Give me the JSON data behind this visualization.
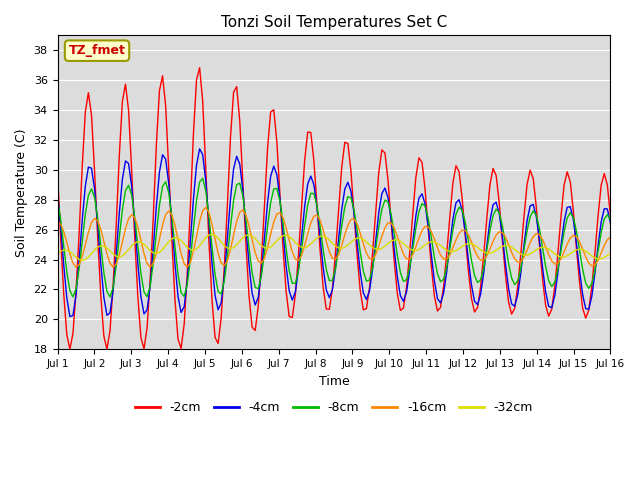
{
  "title": "Tonzi Soil Temperatures Set C",
  "xlabel": "Time",
  "ylabel": "Soil Temperature (C)",
  "ylim": [
    18,
    39
  ],
  "background_color": "#dcdcdc",
  "annotation_text": "TZ_fmet",
  "series_colors": [
    "#ff0000",
    "#0000ee",
    "#00bb00",
    "#ff8800",
    "#dddd00"
  ],
  "series_labels": [
    "-2cm",
    "-4cm",
    "-8cm",
    "-16cm",
    "-32cm"
  ],
  "xtick_labels": [
    "Jul 1",
    "Jul 2",
    "Jul 3",
    "Jul 4",
    "Jul 5",
    "Jul 6",
    "Jul 7",
    "Jul 8",
    "Jul 9",
    "Jul 10",
    "Jul 11",
    "Jul 12",
    "Jul 13",
    "Jul 14",
    "Jul 15",
    "Jul 16"
  ],
  "yticks": [
    18,
    20,
    22,
    24,
    26,
    28,
    30,
    32,
    34,
    36,
    38
  ],
  "n_points_per_day": 12,
  "n_days": 15
}
